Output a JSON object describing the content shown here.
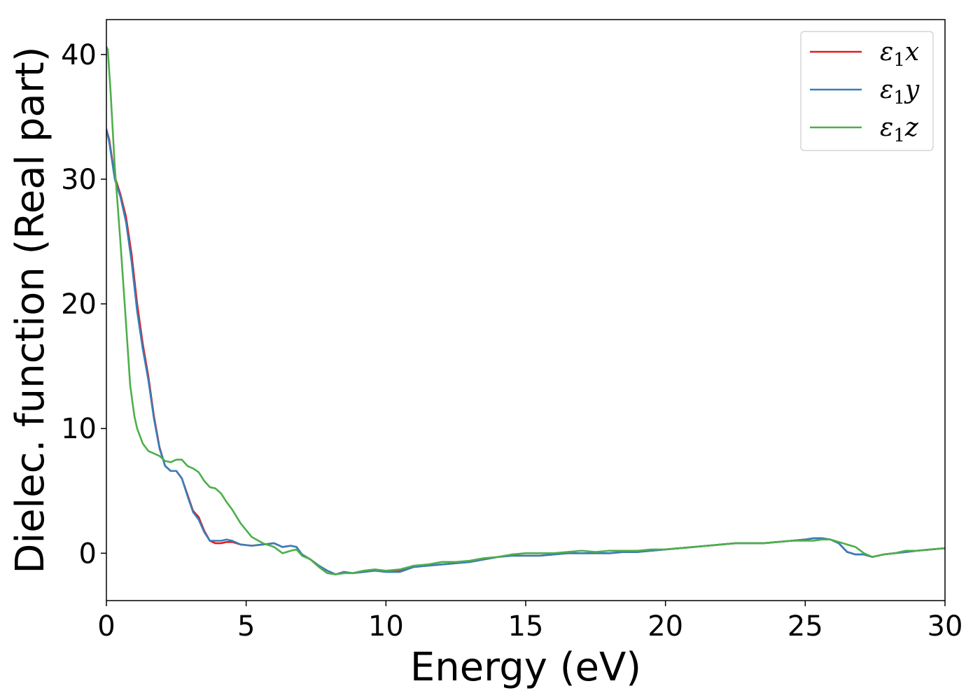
{
  "chart_data": {
    "type": "line",
    "xlabel": "Energy (eV)",
    "ylabel": "Dielec. function (Real part)",
    "xlim": [
      0,
      30
    ],
    "ylim": [
      -3.8,
      42.8
    ],
    "xticks": [
      0,
      5,
      10,
      15,
      20,
      25,
      30
    ],
    "yticks": [
      0,
      10,
      20,
      30,
      40
    ],
    "grid": false,
    "legend_position": "top-right",
    "series": [
      {
        "name": "ε1x",
        "legend_main": "ε",
        "legend_sub": "1",
        "legend_suffix": "x",
        "color": "#e41a1c",
        "x": [
          0,
          0.1,
          0.3,
          0.5,
          0.7,
          0.9,
          1.1,
          1.3,
          1.5,
          1.7,
          1.9,
          2.1,
          2.3,
          2.5,
          2.7,
          2.9,
          3.1,
          3.3,
          3.5,
          3.7,
          3.9,
          4.1,
          4.3,
          4.5,
          4.8,
          5.2,
          5.6,
          6.0,
          6.3,
          6.6,
          6.8,
          7.0,
          7.3,
          7.6,
          7.9,
          8.2,
          8.5,
          8.8,
          9.2,
          9.6,
          10.0,
          10.5,
          11.0,
          11.5,
          12.0,
          12.5,
          13.0,
          13.5,
          14.0,
          14.5,
          15.0,
          15.5,
          16.0,
          16.5,
          17.0,
          17.5,
          18.0,
          18.5,
          19.0,
          19.5,
          20.0,
          20.5,
          21.0,
          21.5,
          22.0,
          22.5,
          23.0,
          23.5,
          24.0,
          24.5,
          25.0,
          25.3,
          25.6,
          25.9,
          26.2,
          26.5,
          26.8,
          27.1,
          27.4,
          27.8,
          28.2,
          28.6,
          29.0,
          29.5,
          30.0
        ],
        "y": [
          34.0,
          33.2,
          30.2,
          28.8,
          27.0,
          24.0,
          20.0,
          16.8,
          14.2,
          11.0,
          8.5,
          7.0,
          6.6,
          6.6,
          6.0,
          4.7,
          3.4,
          2.9,
          1.8,
          1.0,
          0.8,
          0.8,
          0.9,
          0.9,
          0.7,
          0.6,
          0.7,
          0.8,
          0.5,
          0.6,
          0.5,
          -0.1,
          -0.5,
          -1.0,
          -1.4,
          -1.7,
          -1.5,
          -1.6,
          -1.5,
          -1.4,
          -1.4,
          -1.4,
          -1.1,
          -1.0,
          -0.9,
          -0.8,
          -0.7,
          -0.5,
          -0.3,
          -0.2,
          -0.2,
          -0.2,
          -0.1,
          0.0,
          0.0,
          0.0,
          0.0,
          0.1,
          0.1,
          0.2,
          0.3,
          0.4,
          0.5,
          0.6,
          0.7,
          0.8,
          0.8,
          0.8,
          0.9,
          1.0,
          1.1,
          1.2,
          1.2,
          1.1,
          0.8,
          0.1,
          -0.1,
          -0.1,
          -0.3,
          -0.1,
          0.0,
          0.1,
          0.2,
          0.3,
          0.4
        ]
      },
      {
        "name": "ε1y",
        "legend_main": "ε",
        "legend_sub": "1",
        "legend_suffix": "y",
        "color": "#377eb8",
        "x": [
          0,
          0.1,
          0.3,
          0.5,
          0.7,
          0.9,
          1.1,
          1.3,
          1.5,
          1.7,
          1.9,
          2.1,
          2.3,
          2.5,
          2.7,
          2.9,
          3.1,
          3.3,
          3.5,
          3.7,
          3.9,
          4.1,
          4.3,
          4.5,
          4.8,
          5.2,
          5.6,
          6.0,
          6.3,
          6.6,
          6.8,
          7.0,
          7.3,
          7.6,
          7.9,
          8.2,
          8.5,
          8.8,
          9.2,
          9.6,
          10.0,
          10.5,
          11.0,
          11.5,
          12.0,
          12.5,
          13.0,
          13.5,
          14.0,
          14.5,
          15.0,
          15.5,
          16.0,
          16.5,
          17.0,
          17.5,
          18.0,
          18.5,
          19.0,
          19.5,
          20.0,
          20.5,
          21.0,
          21.5,
          22.0,
          22.5,
          23.0,
          23.5,
          24.0,
          24.5,
          25.0,
          25.3,
          25.6,
          25.9,
          26.2,
          26.5,
          26.8,
          27.1,
          27.4,
          27.8,
          28.2,
          28.6,
          29.0,
          29.5,
          30.0
        ],
        "y": [
          34.0,
          33.0,
          30.0,
          28.6,
          26.6,
          23.4,
          19.4,
          16.4,
          13.9,
          10.8,
          8.4,
          7.0,
          6.6,
          6.6,
          6.0,
          4.6,
          3.3,
          2.7,
          1.7,
          1.0,
          1.0,
          1.0,
          1.1,
          1.0,
          0.7,
          0.6,
          0.7,
          0.8,
          0.5,
          0.6,
          0.5,
          -0.1,
          -0.5,
          -1.0,
          -1.4,
          -1.7,
          -1.5,
          -1.6,
          -1.5,
          -1.4,
          -1.5,
          -1.5,
          -1.1,
          -1.0,
          -0.9,
          -0.8,
          -0.7,
          -0.5,
          -0.3,
          -0.2,
          -0.2,
          -0.2,
          -0.1,
          0.0,
          0.0,
          0.0,
          0.0,
          0.1,
          0.1,
          0.2,
          0.3,
          0.4,
          0.5,
          0.6,
          0.7,
          0.8,
          0.8,
          0.8,
          0.9,
          1.0,
          1.1,
          1.2,
          1.2,
          1.1,
          0.8,
          0.1,
          -0.1,
          -0.1,
          -0.3,
          -0.1,
          0.0,
          0.1,
          0.2,
          0.3,
          0.4
        ]
      },
      {
        "name": "ε1z",
        "legend_main": "ε",
        "legend_sub": "1",
        "legend_suffix": "z",
        "color": "#4daf4a",
        "x": [
          0,
          0.05,
          0.15,
          0.3,
          0.5,
          0.7,
          0.85,
          1.0,
          1.1,
          1.3,
          1.5,
          1.7,
          1.9,
          2.1,
          2.3,
          2.5,
          2.7,
          2.9,
          3.1,
          3.3,
          3.5,
          3.7,
          3.9,
          4.1,
          4.3,
          4.5,
          4.8,
          5.2,
          5.6,
          6.0,
          6.3,
          6.6,
          6.8,
          7.0,
          7.3,
          7.6,
          7.9,
          8.2,
          8.5,
          8.8,
          9.2,
          9.6,
          10.0,
          10.5,
          11.0,
          11.5,
          12.0,
          12.5,
          13.0,
          13.5,
          14.0,
          14.5,
          15.0,
          15.5,
          16.0,
          16.5,
          17.0,
          17.5,
          18.0,
          18.5,
          19.0,
          19.5,
          20.0,
          20.5,
          21.0,
          21.5,
          22.0,
          22.5,
          23.0,
          23.5,
          24.0,
          24.5,
          25.0,
          25.3,
          25.6,
          25.9,
          26.2,
          26.5,
          26.8,
          27.1,
          27.4,
          27.8,
          28.2,
          28.6,
          29.0,
          29.5,
          30.0
        ],
        "y": [
          40.6,
          40.4,
          37.0,
          31.0,
          25.0,
          18.5,
          13.5,
          11.0,
          10.0,
          8.8,
          8.2,
          8.0,
          7.8,
          7.4,
          7.3,
          7.5,
          7.5,
          7.0,
          6.8,
          6.5,
          5.8,
          5.3,
          5.2,
          4.8,
          4.1,
          3.5,
          2.4,
          1.3,
          0.8,
          0.5,
          0.0,
          0.2,
          0.3,
          -0.2,
          -0.5,
          -1.1,
          -1.6,
          -1.7,
          -1.6,
          -1.6,
          -1.4,
          -1.3,
          -1.4,
          -1.3,
          -1.0,
          -0.9,
          -0.7,
          -0.7,
          -0.6,
          -0.4,
          -0.3,
          -0.1,
          0.0,
          0.0,
          0.0,
          0.1,
          0.2,
          0.1,
          0.2,
          0.2,
          0.2,
          0.3,
          0.3,
          0.4,
          0.5,
          0.6,
          0.7,
          0.8,
          0.8,
          0.8,
          0.9,
          1.0,
          1.0,
          1.0,
          1.1,
          1.1,
          0.9,
          0.7,
          0.5,
          0.0,
          -0.3,
          -0.1,
          0.0,
          0.2,
          0.2,
          0.3,
          0.4
        ]
      }
    ]
  }
}
